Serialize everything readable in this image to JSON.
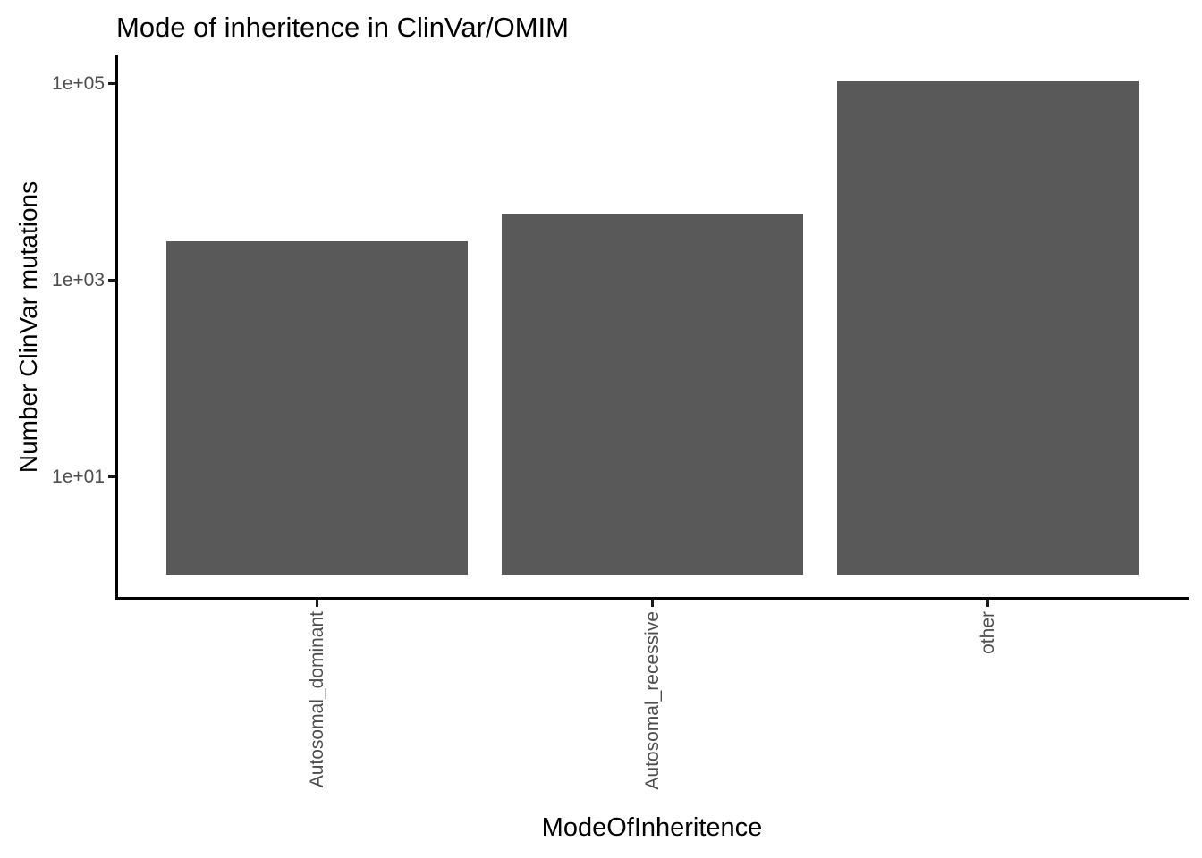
{
  "chart_data": {
    "type": "bar",
    "title": "Mode of inheritence in ClinVar/OMIM",
    "xlabel": "ModeOfInheritence",
    "ylabel": "Number ClinVar mutations",
    "categories": [
      "Autosomal_dominant",
      "Autosomal_recessive",
      "other"
    ],
    "values": [
      2460,
      4600,
      104000
    ],
    "y_scale": "log10",
    "baseline_value": 1,
    "ylim": [
      0.6,
      190000
    ],
    "y_ticks": [
      {
        "label": "1e+05",
        "value": 100000
      },
      {
        "label": "1e+03",
        "value": 1000
      },
      {
        "label": "1e+01",
        "value": 10
      }
    ],
    "grid": false,
    "legend": false,
    "colors": {
      "bar_fill": "#595959",
      "axis_tick_text": "#4d4d4d",
      "axis_line": "#000000",
      "title_text": "#000000"
    }
  }
}
